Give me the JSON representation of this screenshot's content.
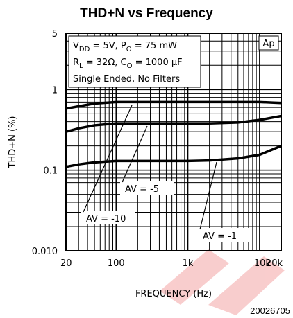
{
  "chart_data": {
    "type": "line",
    "title": "THD+N vs Frequency",
    "xlabel": "FREQUENCY (Hz)",
    "ylabel": "THD+N (%)",
    "xscale": "log",
    "yscale": "log",
    "xlim": [
      20,
      20000
    ],
    "ylim": [
      0.01,
      5
    ],
    "xticks": [
      20,
      100,
      {
        "value": 1000,
        "label": "1k"
      },
      {
        "value": 10000,
        "label": "10k"
      },
      {
        "value": 20000,
        "label": "20k"
      }
    ],
    "yticks": [
      5,
      1,
      0.1,
      {
        "value": 0.01,
        "label": "0.010"
      }
    ],
    "grid": true,
    "minor_grid": true,
    "x": [
      20,
      30,
      50,
      100,
      200,
      500,
      1000,
      2000,
      5000,
      10000,
      20000
    ],
    "series": [
      {
        "name": "AV = -10",
        "color": "#000000",
        "values": [
          0.58,
          0.62,
          0.67,
          0.7,
          0.7,
          0.7,
          0.7,
          0.7,
          0.7,
          0.7,
          0.68
        ]
      },
      {
        "name": "AV = -5",
        "color": "#000000",
        "values": [
          0.3,
          0.33,
          0.36,
          0.38,
          0.38,
          0.38,
          0.38,
          0.38,
          0.39,
          0.42,
          0.47
        ]
      },
      {
        "name": "AV = -1",
        "color": "#000000",
        "values": [
          0.11,
          0.118,
          0.125,
          0.13,
          0.13,
          0.13,
          0.13,
          0.132,
          0.14,
          0.155,
          0.2
        ]
      }
    ],
    "annotations": [
      [
        "V",
        "DD",
        " = 5V, P",
        "O",
        " = 75 mW"
      ],
      [
        "R",
        "L",
        " = 32Ω, C",
        "O",
        " = 1000 μF"
      ],
      [
        "Single Ended, No Filters"
      ]
    ],
    "badge": "Ap",
    "figure_id": "20026705"
  }
}
